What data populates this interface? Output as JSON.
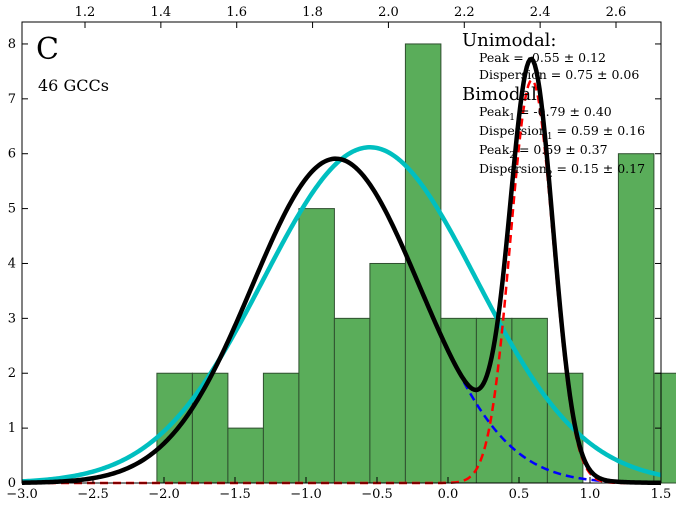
{
  "chart_data": {
    "type": "bar",
    "panel_label": "C",
    "sample_label": "46 GCCs",
    "xlim": [
      -3.0,
      1.5
    ],
    "ylim": [
      0,
      8.4
    ],
    "x_ticks": [
      "−3.0",
      "−2.5",
      "−2.0",
      "−1.5",
      "−1.0",
      "−0.5",
      "0.0",
      "0.5",
      "1.0",
      "1.5"
    ],
    "x_tick_values": [
      -3.0,
      -2.5,
      -2.0,
      -1.5,
      -1.0,
      -0.5,
      0.0,
      0.5,
      1.0,
      1.5
    ],
    "y_ticks": [
      "0",
      "1",
      "2",
      "3",
      "4",
      "5",
      "6",
      "7",
      "8"
    ],
    "y_tick_values": [
      0,
      1,
      2,
      3,
      4,
      5,
      6,
      7,
      8
    ],
    "top_ticks": [
      "1.2",
      "1.4",
      "1.6",
      "1.8",
      "2.0",
      "2.2",
      "2.4",
      "2.6"
    ],
    "top_tick_values": [
      1.2,
      1.4,
      1.6,
      1.8,
      2.0,
      2.2,
      2.4,
      2.6
    ],
    "histogram": {
      "bin_start": -2.05,
      "bin_width": 0.25,
      "counts": [
        2,
        2,
        1,
        2,
        5,
        3,
        4,
        8,
        3,
        3,
        3,
        2,
        0,
        6,
        2
      ],
      "color": "#5aad5a"
    },
    "curves": {
      "unimodal": {
        "mu": -0.55,
        "sigma": 0.75,
        "color": "#00bfc0"
      },
      "bimodal_component_1": {
        "mu": -0.79,
        "sigma": 0.59,
        "weight": 0.76,
        "color": "#0000ff"
      },
      "bimodal_component_2": {
        "mu": 0.59,
        "sigma": 0.15,
        "weight": 0.24,
        "color": "#ff0000"
      },
      "bimodal_total_color": "#000000",
      "scale": 11.5
    },
    "stats": {
      "unimodal_title": "Unimodal:",
      "unimodal_lines": [
        {
          "text": "Peak = -0.55 ± 0.12",
          "sub": ""
        },
        {
          "text": "Dispersion = 0.75 ± 0.06",
          "sub": ""
        }
      ],
      "bimodal_title": "Bimodal:",
      "bimodal_lines": [
        {
          "pre": "Peak",
          "sub": "1",
          "post": " = -0.79 ± 0.40"
        },
        {
          "pre": "Dispersion",
          "sub": "1",
          "post": " = 0.59 ± 0.16"
        },
        {
          "pre": "Peak",
          "sub": "2",
          "post": " = 0.59 ± 0.37"
        },
        {
          "pre": "Dispersion",
          "sub": "2",
          "post": " = 0.15 ± 0.17"
        }
      ]
    }
  }
}
